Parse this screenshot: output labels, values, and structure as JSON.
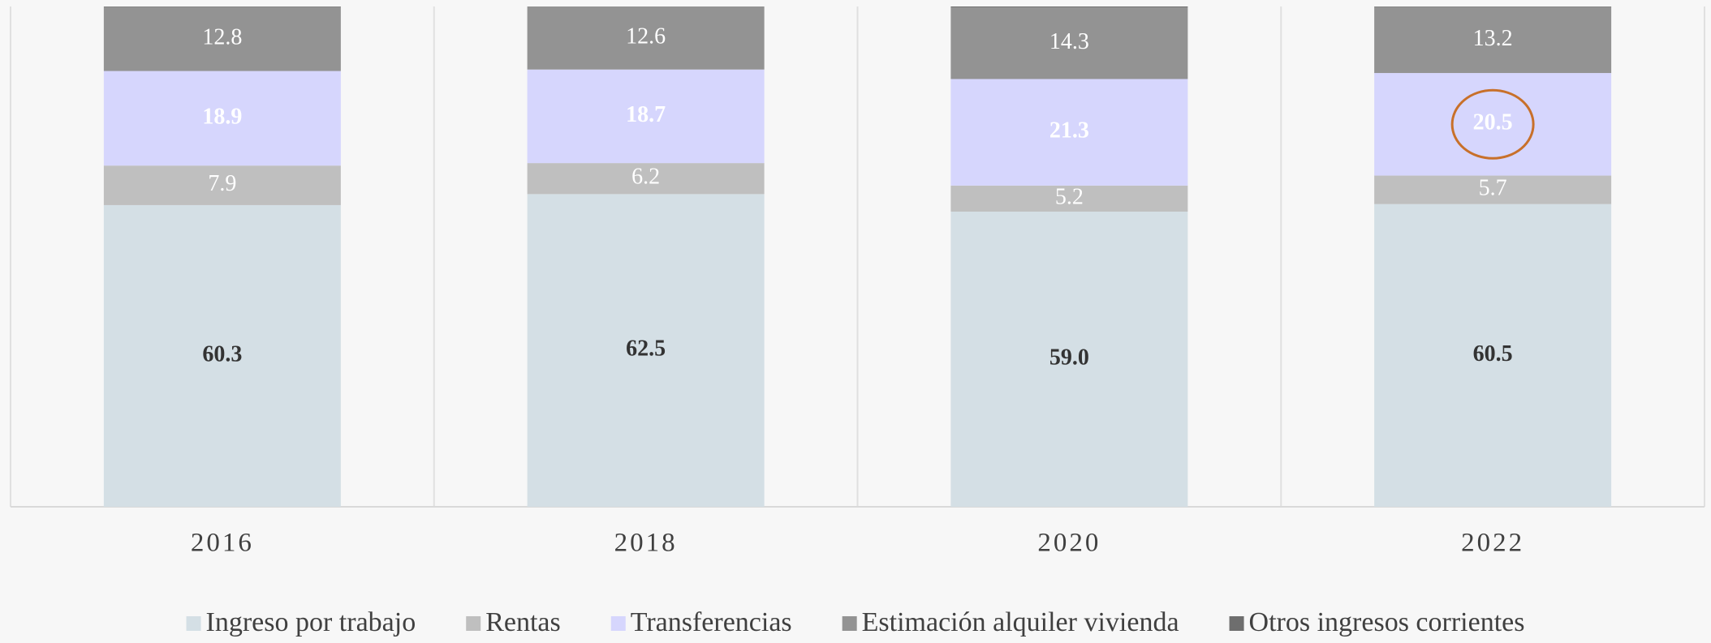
{
  "chart_data": {
    "type": "stacked_bar",
    "categories": [
      "2016",
      "2018",
      "2020",
      "2022"
    ],
    "series": [
      {
        "name": "Ingreso por trabajo",
        "color": "#d4dfe5",
        "label_color": "#333333",
        "label_bold": true,
        "values": [
          60.3,
          62.5,
          59.0,
          60.5
        ],
        "value_labels": [
          "60.3",
          "62.5",
          "59.0",
          "60.5"
        ]
      },
      {
        "name": "Rentas",
        "color": "#bfbfbf",
        "label_color": "#ffffff",
        "label_bold": false,
        "values": [
          7.9,
          6.2,
          5.2,
          5.7
        ]
      },
      {
        "name": "Transferencias",
        "color": "#d6d6fd",
        "label_color": "#ffffff",
        "label_bold": true,
        "values": [
          18.9,
          18.7,
          21.3,
          20.5
        ]
      },
      {
        "name": "Estimación alquiler vivienda",
        "color": "#939393",
        "label_color": "#ffffff",
        "label_bold": false,
        "values": [
          12.8,
          12.6,
          14.3,
          13.2
        ]
      },
      {
        "name": "Otros ingresos corrientes",
        "color": "#6e6e6e",
        "label_color": "#ffffff",
        "label_bold": false,
        "show_labels": false,
        "values": [
          0.1,
          0.0,
          0.2,
          0.1
        ]
      }
    ],
    "ylim": [
      0,
      100
    ],
    "grid": true,
    "legend": "bottom"
  }
}
